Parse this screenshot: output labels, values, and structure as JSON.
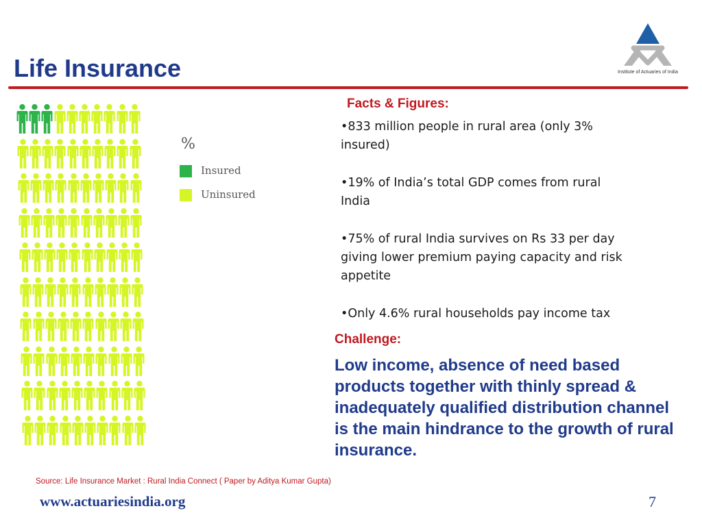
{
  "slide": {
    "title": "Life Insurance",
    "logo_text": "Institute of Actuaries of India",
    "page_number": "7"
  },
  "chart_data": {
    "type": "pictogram",
    "unit_symbol": "%",
    "total_icons": 100,
    "series": [
      {
        "name": "Insured",
        "value": 3,
        "color": "#2db34a"
      },
      {
        "name": "Uninsured",
        "value": 97,
        "color": "#d6f526"
      }
    ]
  },
  "legend": {
    "pct_symbol": "%",
    "items": [
      {
        "label": "Insured",
        "color": "#2db34a"
      },
      {
        "label": "Uninsured",
        "color": "#d6f526"
      }
    ]
  },
  "facts": {
    "heading": "Facts & Figures:",
    "items": [
      "•833 million people in rural area (only 3% insured)",
      "•19% of India’s total GDP comes from rural India",
      "•75% of rural India survives on Rs 33 per day giving lower premium paying capacity and risk appetite",
      "•Only 4.6% rural households pay income tax"
    ]
  },
  "challenge": {
    "heading": "Challenge:",
    "text": "Low income, absence of need based products together with thinly spread & inadequately qualified distribution channel is the main hindrance to the growth of rural insurance."
  },
  "footer": {
    "source": "Source: Life Insurance Market : Rural India Connect ( Paper by Aditya Kumar Gupta)",
    "website": "www.actuariesindia.org"
  },
  "colors": {
    "title": "#1f3a8a",
    "accent_red": "#c0191f",
    "insured": "#2db34a",
    "uninsured": "#d6f526"
  }
}
